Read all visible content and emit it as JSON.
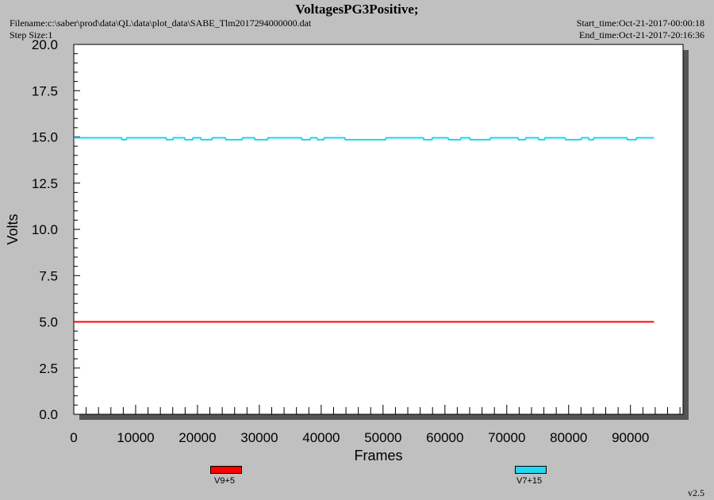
{
  "header": {
    "title": "VoltagesPG3Positive;",
    "filename": "Filename:c:\\saber\\prod\\data\\QL\\data\\plot_data\\SABE_Tlm2017294000000.dat",
    "step_size": "Step Size:1",
    "start_time": "Start_time:Oct-21-2017-00:00:18",
    "end_time": "End_time:Oct-21-2017-20:16:36"
  },
  "footer": {
    "version": "v2.5"
  },
  "colors": {
    "plot_bg": "#ffffff",
    "page_bg": "#c0c0c0",
    "v9": "#ff0000",
    "v7": "#22d8f0"
  },
  "chart_data": {
    "type": "line",
    "title": "VoltagesPG3Positive;",
    "xlabel": "Frames",
    "ylabel": "Volts",
    "xlim": [
      0,
      98500
    ],
    "ylim": [
      0,
      20
    ],
    "x_ticks": [
      0,
      10000,
      20000,
      30000,
      40000,
      50000,
      60000,
      70000,
      80000,
      90000
    ],
    "x_tick_labels": [
      "0",
      "10000",
      "20000",
      "30000",
      "40000",
      "50000",
      "60000",
      "70000",
      "80000",
      "90000"
    ],
    "y_ticks": [
      0,
      2.5,
      5,
      7.5,
      10,
      12.5,
      15,
      17.5,
      20
    ],
    "y_tick_labels": [
      "0.0",
      "2.5",
      "5.0",
      "7.5",
      "10.0",
      "12.5",
      "15.0",
      "17.5",
      "20.0"
    ],
    "grid": false,
    "legend_position": "bottom",
    "series": [
      {
        "name": "V9+5",
        "color": "#ff0000",
        "x": [
          0,
          93800
        ],
        "y": [
          5.0,
          5.0
        ]
      },
      {
        "name": "V7+15",
        "color": "#22d8f0",
        "x": [
          0,
          7700,
          7800,
          8500,
          8600,
          14900,
          15000,
          16000,
          16100,
          17900,
          18000,
          19200,
          19300,
          20500,
          20600,
          22300,
          22400,
          24500,
          24600,
          27200,
          27300,
          29200,
          29300,
          31300,
          31400,
          36800,
          36900,
          38200,
          38300,
          39300,
          39400,
          40400,
          40500,
          43800,
          43900,
          50400,
          50500,
          56500,
          56600,
          57900,
          58000,
          60500,
          60600,
          62500,
          62600,
          64000,
          64100,
          67300,
          67400,
          71800,
          71900,
          73000,
          73100,
          75100,
          75200,
          76100,
          76200,
          79400,
          79500,
          82000,
          82100,
          83200,
          83300,
          84000,
          84100,
          89400,
          89500,
          90900,
          91000,
          93800
        ],
        "y": [
          14.95,
          14.95,
          14.85,
          14.85,
          14.95,
          14.95,
          14.85,
          14.85,
          14.95,
          14.95,
          14.85,
          14.85,
          14.95,
          14.95,
          14.85,
          14.85,
          14.95,
          14.95,
          14.85,
          14.85,
          14.95,
          14.95,
          14.85,
          14.85,
          14.95,
          14.95,
          14.85,
          14.85,
          14.95,
          14.95,
          14.85,
          14.85,
          14.95,
          14.95,
          14.85,
          14.85,
          14.95,
          14.95,
          14.85,
          14.85,
          14.95,
          14.95,
          14.85,
          14.85,
          14.95,
          14.95,
          14.85,
          14.85,
          14.95,
          14.95,
          14.85,
          14.85,
          14.95,
          14.95,
          14.85,
          14.85,
          14.95,
          14.95,
          14.85,
          14.85,
          14.95,
          14.95,
          14.85,
          14.85,
          14.95,
          14.95,
          14.85,
          14.85,
          14.95,
          14.95
        ]
      }
    ]
  },
  "legend": {
    "items": [
      {
        "label": "V9+5",
        "color": "#ff0000"
      },
      {
        "label": "V7+15",
        "color": "#22d8f0"
      }
    ]
  }
}
